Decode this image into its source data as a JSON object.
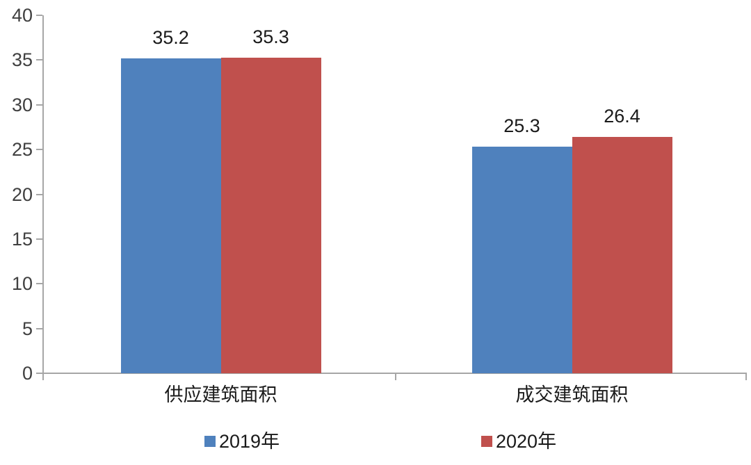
{
  "chart_data": {
    "type": "bar",
    "title": "",
    "categories": [
      "供应建筑面积",
      "成交建筑面积"
    ],
    "series": [
      {
        "name": "2019年",
        "color": "#4F81BD",
        "values": [
          35.2,
          25.3
        ]
      },
      {
        "name": "2020年",
        "color": "#C0504D",
        "values": [
          35.3,
          26.4
        ]
      }
    ],
    "value_labels": [
      [
        "35.2",
        "25.3"
      ],
      [
        "35.3",
        "26.4"
      ]
    ],
    "ylim": [
      0,
      40
    ],
    "yticks": [
      0,
      5,
      10,
      15,
      20,
      25,
      30,
      35,
      40
    ],
    "grid": false,
    "legend_position": "bottom",
    "colors": {
      "axis": "#A6A6A6",
      "tick_label": "#404040",
      "data_label": "#1a1a1a",
      "background": "#ffffff"
    }
  }
}
